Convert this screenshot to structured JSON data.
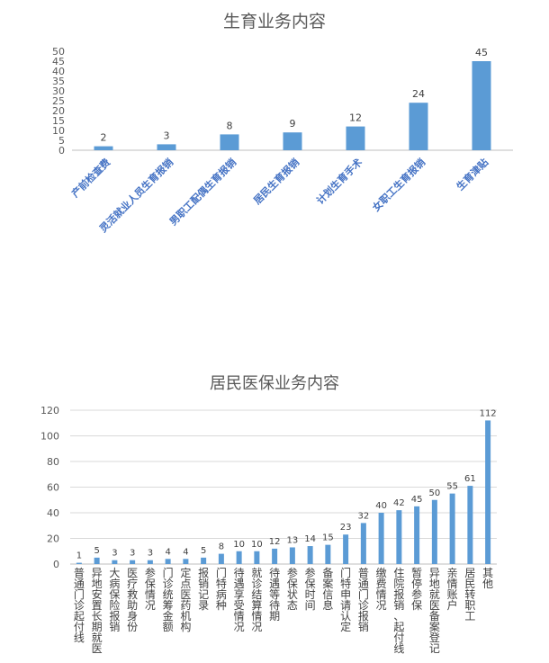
{
  "chart_data": [
    {
      "type": "bar",
      "title": "生育业务内容",
      "categories": [
        "产前检查费",
        "灵活就业人员生育报销",
        "男职工配偶生育报销",
        "居民生育报销",
        "计划生育手术",
        "女职工生育报销",
        "生育津贴"
      ],
      "values": [
        2,
        3,
        8,
        9,
        12,
        24,
        45
      ],
      "yticks": [
        "0",
        "5",
        "10",
        "15",
        "20",
        "25",
        "30",
        "35",
        "40",
        "45",
        "50"
      ],
      "ylim": [
        0,
        50
      ],
      "color": "#5b9bd5",
      "grid": false
    },
    {
      "type": "bar",
      "title": "居民医保业务内容",
      "categories": [
        "普通门诊起付线",
        "异地安置长期就医",
        "大病保险报销",
        "医疗救助身份",
        "参保情况",
        "门诊统筹金额",
        "定点医药机构",
        "报销记录",
        "门特病种",
        "待遇享受情况",
        "就诊结算情况",
        "待遇等待期",
        "参保状态",
        "参保时间",
        "备案信息",
        "门特申请认定",
        "普通门诊报销",
        "缴费情况",
        "住院报销、起付线",
        "暂停参保",
        "异地就医备案登记",
        "亲情账户",
        "居民转职工",
        "其他"
      ],
      "values": [
        1,
        5,
        3,
        3,
        3,
        4,
        4,
        5,
        8,
        10,
        10,
        12,
        13,
        14,
        15,
        23,
        32,
        40,
        42,
        45,
        50,
        55,
        61,
        112
      ],
      "yticks": [
        "0",
        "20",
        "40",
        "60",
        "80",
        "100",
        "120"
      ],
      "ylim": [
        0,
        120
      ],
      "color": "#5b9bd5",
      "grid": true
    }
  ]
}
